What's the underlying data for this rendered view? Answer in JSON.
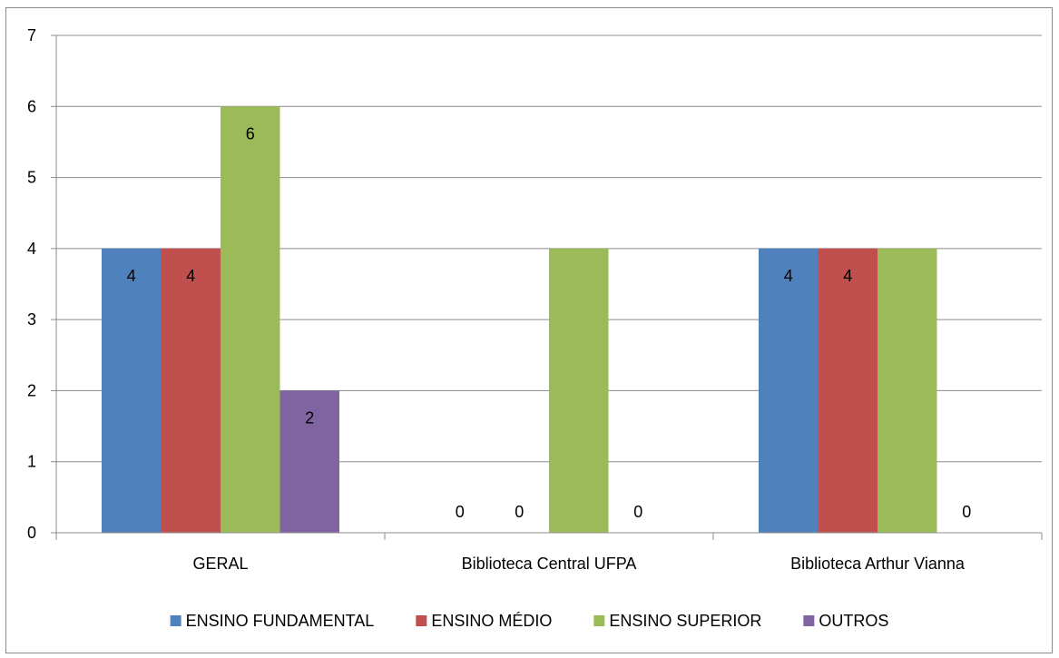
{
  "chart_data": {
    "type": "bar",
    "title": "",
    "xlabel": "",
    "ylabel": "",
    "ylim": [
      0,
      7
    ],
    "yticks": [
      0,
      1,
      2,
      3,
      4,
      5,
      6,
      7
    ],
    "grid": true,
    "legend_position": "bottom",
    "categories": [
      "GERAL",
      "Biblioteca Central UFPA",
      "Biblioteca Arthur Vianna"
    ],
    "series": [
      {
        "name": "ENSINO FUNDAMENTAL",
        "color": "#4f81bd",
        "values": [
          4,
          0,
          4
        ],
        "labels": [
          "4",
          "0",
          "4"
        ]
      },
      {
        "name": "ENSINO MÉDIO",
        "color": "#c0504d",
        "values": [
          4,
          0,
          4
        ],
        "labels": [
          "4",
          "0",
          "4"
        ]
      },
      {
        "name": "ENSINO SUPERIOR",
        "color": "#9bbb59",
        "values": [
          6,
          4,
          4
        ],
        "labels": [
          "6",
          "",
          ""
        ]
      },
      {
        "name": "OUTROS",
        "color": "#8064a2",
        "values": [
          2,
          0,
          0
        ],
        "labels": [
          "2",
          "0",
          "0"
        ]
      }
    ]
  }
}
